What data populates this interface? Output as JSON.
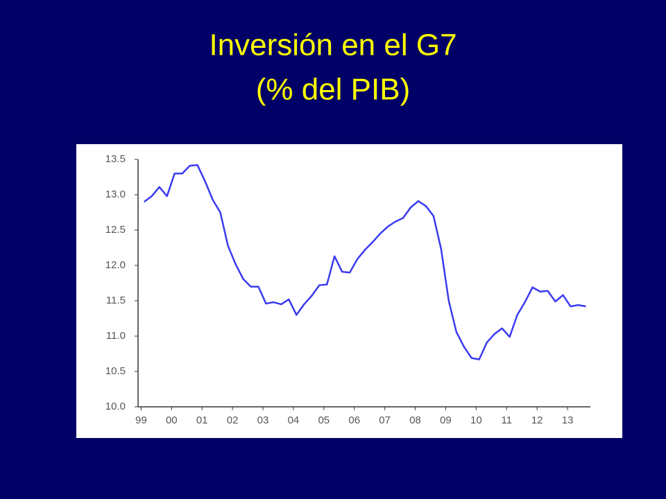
{
  "chart_data": {
    "type": "line",
    "title": "Inversión en el G7",
    "subtitle": "(% del PIB)",
    "x": [
      1999.1,
      1999.35,
      1999.6,
      1999.85,
      2000.1,
      2000.35,
      2000.6,
      2000.85,
      2001.1,
      2001.35,
      2001.6,
      2001.85,
      2002.1,
      2002.35,
      2002.6,
      2002.85,
      2003.1,
      2003.35,
      2003.6,
      2003.85,
      2004.1,
      2004.35,
      2004.6,
      2004.85,
      2005.1,
      2005.35,
      2005.6,
      2005.85,
      2006.1,
      2006.35,
      2006.6,
      2006.85,
      2007.1,
      2007.35,
      2007.6,
      2007.85,
      2008.1,
      2008.35,
      2008.6,
      2008.85,
      2009.1,
      2009.35,
      2009.6,
      2009.85,
      2010.1,
      2010.35,
      2010.6,
      2010.85,
      2011.1,
      2011.35,
      2011.6,
      2011.85,
      2012.1,
      2012.35,
      2012.6,
      2012.85,
      2013.1,
      2013.35,
      2013.6
    ],
    "series": [
      {
        "color": "#3a3af0",
        "values": [
          12.9,
          12.98,
          13.11,
          12.98,
          13.3,
          13.3,
          13.41,
          13.42,
          13.19,
          12.93,
          12.75,
          12.28,
          12.02,
          11.81,
          11.7,
          11.7,
          11.46,
          11.48,
          11.45,
          11.52,
          11.3,
          11.45,
          11.57,
          11.72,
          11.73,
          12.13,
          11.91,
          11.9,
          12.09,
          12.22,
          12.33,
          12.45,
          12.55,
          12.62,
          12.67,
          12.82,
          12.91,
          12.84,
          12.7,
          12.23,
          11.5,
          11.06,
          10.85,
          10.69,
          10.67,
          10.91,
          11.03,
          11.11,
          10.99,
          11.3,
          11.48,
          11.69,
          11.63,
          11.64,
          11.49,
          11.58,
          11.42,
          11.44,
          11.42
        ]
      }
    ],
    "xlim": [
      1998.9,
      2013.75
    ],
    "xticks": [
      {
        "value": 1999,
        "label": "99"
      },
      {
        "value": 2000,
        "label": "00"
      },
      {
        "value": 2001,
        "label": "01"
      },
      {
        "value": 2002,
        "label": "02"
      },
      {
        "value": 2003,
        "label": "03"
      },
      {
        "value": 2004,
        "label": "04"
      },
      {
        "value": 2005,
        "label": "05"
      },
      {
        "value": 2006,
        "label": "06"
      },
      {
        "value": 2007,
        "label": "07"
      },
      {
        "value": 2008,
        "label": "08"
      },
      {
        "value": 2009,
        "label": "09"
      },
      {
        "value": 2010,
        "label": "10"
      },
      {
        "value": 2011,
        "label": "11"
      },
      {
        "value": 2012,
        "label": "12"
      },
      {
        "value": 2013,
        "label": "13"
      }
    ],
    "ylim": [
      10,
      13.5
    ],
    "yticks": [
      {
        "value": 10,
        "label": "10.0"
      },
      10.5,
      {
        "value": 11,
        "label": "11.0"
      },
      11.5,
      {
        "value": 12,
        "label": "12.0"
      },
      12.5,
      {
        "value": 13,
        "label": "13.0"
      },
      13.5
    ],
    "grid": false
  }
}
